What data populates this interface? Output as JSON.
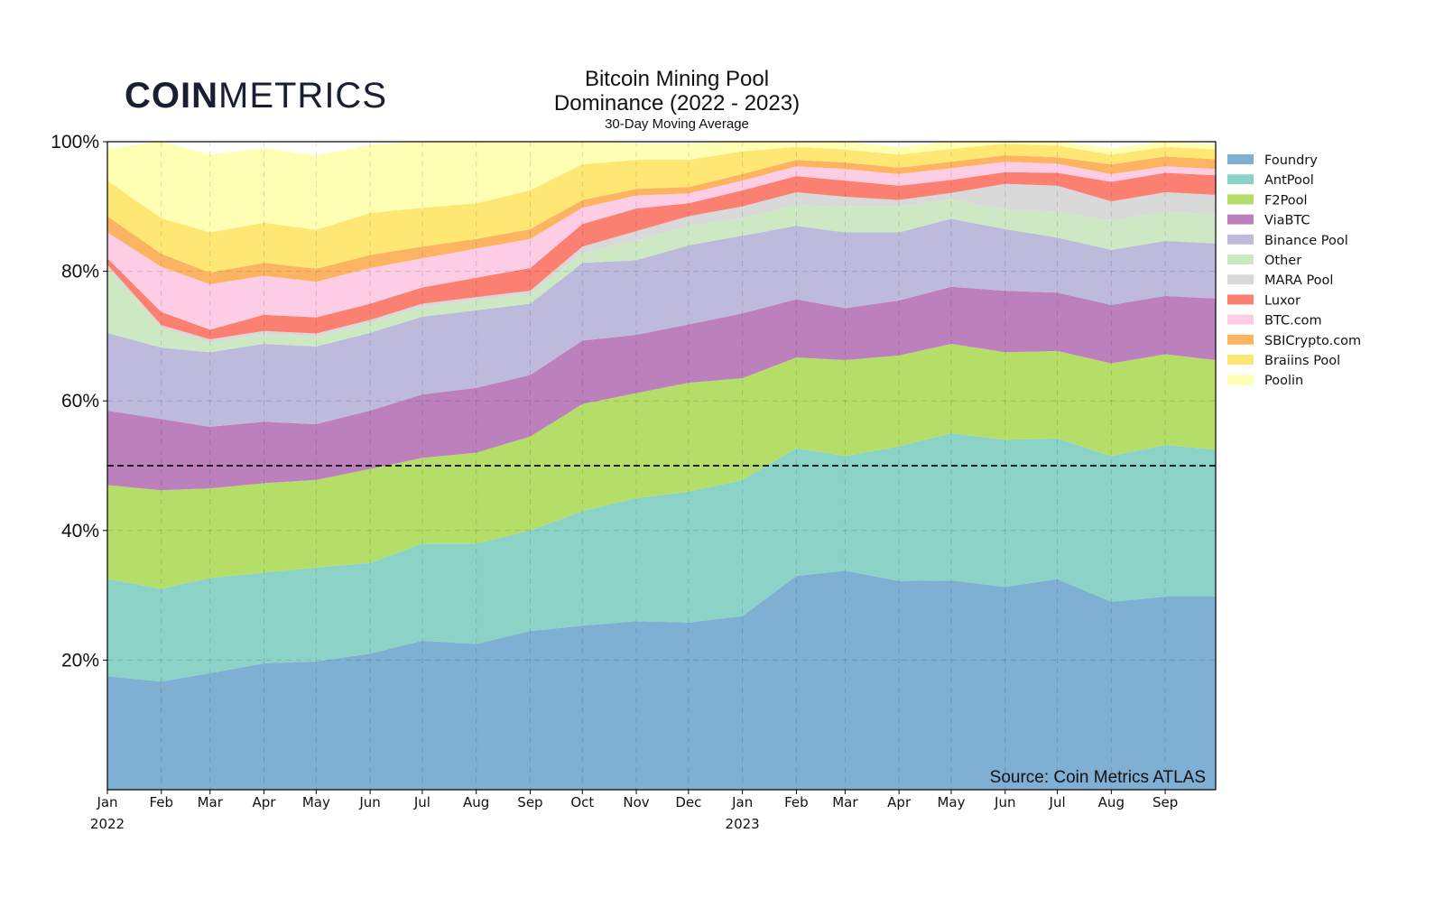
{
  "logo": {
    "bold": "COIN",
    "thin": "METRICS"
  },
  "header": {
    "title_line1": "Bitcoin Mining Pool",
    "title_line2": "Dominance (2022 - 2023)",
    "subtitle": "30-Day Moving Average"
  },
  "source": "Source: Coin Metrics ATLAS",
  "colors": {
    "Foundry": "#7fafd2",
    "AntPool": "#8cd3c7",
    "F2Pool": "#b4de68",
    "ViaBTC": "#bc80bd",
    "Binance Pool": "#bdbadb",
    "Other": "#cce9c4",
    "MARA Pool": "#d9d9d9",
    "Luxor": "#fb8072",
    "BTC.com": "#fccde5",
    "SBICrypto.com": "#fdb462",
    "Braiins Pool": "#ffe773",
    "Poolin": "#ffffb3",
    "threshold_line": "#222222"
  },
  "chart_data": {
    "type": "area",
    "stacked": true,
    "xlabel": "",
    "ylabel": "",
    "ylim": [
      0,
      100
    ],
    "y_unit": "%",
    "y_ticks": [
      "20%",
      "40%",
      "60%",
      "80%",
      "100%"
    ],
    "x_range": [
      "2022-01-01",
      "2023-09-30"
    ],
    "x_ticks": [
      {
        "date": "2022-01-01",
        "label": "Jan",
        "year": "2022"
      },
      {
        "date": "2022-02-01",
        "label": "Feb"
      },
      {
        "date": "2022-03-01",
        "label": "Mar"
      },
      {
        "date": "2022-04-01",
        "label": "Apr"
      },
      {
        "date": "2022-05-01",
        "label": "May"
      },
      {
        "date": "2022-06-01",
        "label": "Jun"
      },
      {
        "date": "2022-07-01",
        "label": "Jul"
      },
      {
        "date": "2022-08-01",
        "label": "Aug"
      },
      {
        "date": "2022-09-01",
        "label": "Sep"
      },
      {
        "date": "2022-10-01",
        "label": "Oct"
      },
      {
        "date": "2022-11-01",
        "label": "Nov"
      },
      {
        "date": "2022-12-01",
        "label": "Dec"
      },
      {
        "date": "2023-01-01",
        "label": "Jan",
        "year": "2023"
      },
      {
        "date": "2023-02-01",
        "label": "Feb"
      },
      {
        "date": "2023-03-01",
        "label": "Mar"
      },
      {
        "date": "2023-04-01",
        "label": "Apr"
      },
      {
        "date": "2023-05-01",
        "label": "May"
      },
      {
        "date": "2023-06-01",
        "label": "Jun"
      },
      {
        "date": "2023-07-01",
        "label": "Jul"
      },
      {
        "date": "2023-08-01",
        "label": "Aug"
      },
      {
        "date": "2023-09-01",
        "label": "Sep"
      }
    ],
    "grid": true,
    "threshold": 50,
    "legend_position": "right",
    "dates": [
      "2022-01-01",
      "2022-02-01",
      "2022-03-01",
      "2022-04-01",
      "2022-05-01",
      "2022-06-01",
      "2022-07-01",
      "2022-08-01",
      "2022-09-01",
      "2022-10-01",
      "2022-11-01",
      "2022-12-01",
      "2023-01-01",
      "2023-02-01",
      "2023-03-01",
      "2023-04-01",
      "2023-05-01",
      "2023-06-01",
      "2023-07-01",
      "2023-08-01",
      "2023-09-01",
      "2023-09-30"
    ],
    "series": [
      {
        "name": "Foundry",
        "values": [
          17.5,
          16.7,
          18.0,
          19.5,
          19.8,
          21.0,
          23.0,
          22.5,
          24.5,
          25.3,
          26.0,
          25.8,
          26.8,
          33.0,
          33.8,
          32.2,
          32.3,
          31.3,
          32.5,
          29.0,
          29.8,
          29.8
        ]
      },
      {
        "name": "AntPool",
        "values": [
          15.0,
          14.3,
          14.7,
          14.0,
          14.5,
          14.0,
          15.0,
          15.5,
          15.5,
          17.7,
          19.0,
          20.2,
          21.0,
          19.7,
          17.7,
          20.8,
          22.7,
          22.7,
          21.7,
          22.5,
          23.4,
          22.7
        ]
      },
      {
        "name": "F2Pool",
        "values": [
          14.5,
          15.2,
          13.8,
          13.8,
          13.5,
          14.5,
          13.2,
          14.0,
          14.5,
          16.5,
          16.2,
          16.8,
          15.7,
          14.0,
          14.8,
          14.0,
          13.8,
          13.5,
          13.5,
          14.3,
          14.0,
          13.8
        ]
      },
      {
        "name": "ViaBTC",
        "values": [
          11.5,
          11.0,
          9.5,
          9.5,
          8.6,
          9.0,
          9.8,
          10.0,
          9.5,
          9.8,
          9.0,
          9.0,
          10.0,
          9.0,
          8.0,
          8.5,
          8.8,
          9.5,
          9.0,
          9.0,
          9.0,
          9.5
        ]
      },
      {
        "name": "Binance Pool",
        "values": [
          12.0,
          11.0,
          11.5,
          12.0,
          12.0,
          12.0,
          12.0,
          12.0,
          11.0,
          12.0,
          11.5,
          12.2,
          12.0,
          11.3,
          11.7,
          10.5,
          10.5,
          9.5,
          8.5,
          8.5,
          8.5,
          8.5
        ]
      },
      {
        "name": "Other",
        "values": [
          10.0,
          3.0,
          1.5,
          1.5,
          1.5,
          1.5,
          1.5,
          1.5,
          1.5,
          1.5,
          3.0,
          3.0,
          2.7,
          3.2,
          4.0,
          4.0,
          3.0,
          3.0,
          4.0,
          4.5,
          4.5,
          4.5
        ]
      },
      {
        "name": "MARA Pool",
        "values": [
          0.5,
          0.5,
          0.5,
          0.5,
          0.5,
          0.5,
          0.5,
          0.5,
          0.5,
          1.0,
          1.5,
          1.5,
          1.8,
          2.0,
          1.5,
          1.0,
          1.0,
          4.0,
          4.0,
          3.0,
          3.0,
          3.0
        ]
      },
      {
        "name": "Luxor",
        "values": [
          1.0,
          2.0,
          1.5,
          2.5,
          2.5,
          2.5,
          2.5,
          3.0,
          3.5,
          3.5,
          3.5,
          2.0,
          2.5,
          2.5,
          2.5,
          2.2,
          2.0,
          1.8,
          2.0,
          3.0,
          3.0,
          3.0
        ]
      },
      {
        "name": "BTC.com",
        "values": [
          4.0,
          7.0,
          7.0,
          6.0,
          5.5,
          5.5,
          4.5,
          4.5,
          4.5,
          2.5,
          2.0,
          1.5,
          1.5,
          1.5,
          1.8,
          1.8,
          1.8,
          1.6,
          1.4,
          1.2,
          1.0,
          1.0
        ]
      },
      {
        "name": "SBICrypto.com",
        "values": [
          2.5,
          2.0,
          1.8,
          2.0,
          2.0,
          2.0,
          1.8,
          1.5,
          1.5,
          1.2,
          1.0,
          1.0,
          1.0,
          1.0,
          1.0,
          1.0,
          1.0,
          1.0,
          1.0,
          1.5,
          1.5,
          1.5
        ]
      },
      {
        "name": "Braiins Pool",
        "values": [
          5.5,
          5.5,
          6.2,
          6.2,
          6.0,
          6.5,
          6.0,
          5.5,
          6.0,
          5.5,
          4.5,
          4.2,
          3.5,
          2.0,
          2.0,
          2.0,
          2.0,
          1.8,
          1.8,
          1.5,
          1.5,
          1.5
        ]
      },
      {
        "name": "Poolin",
        "values": [
          5.0,
          11.8,
          12.0,
          11.5,
          11.5,
          10.5,
          11.0,
          10.5,
          9.0,
          4.0,
          2.5,
          2.5,
          1.8,
          1.5,
          1.2,
          1.2,
          1.2,
          1.0,
          1.0,
          1.0,
          0.8,
          0.8
        ]
      }
    ]
  }
}
